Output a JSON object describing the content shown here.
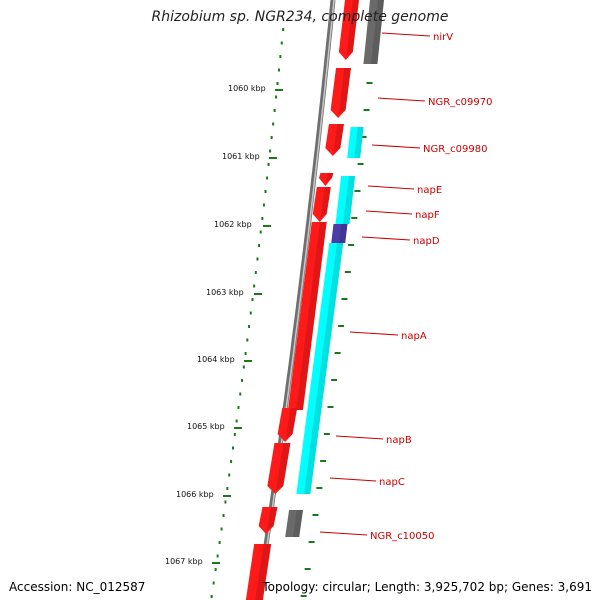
{
  "title": "Rhizobium sp. NGR234, complete genome",
  "footer": {
    "accession": "Accession: NC_012587",
    "summary": "Topology: circular; Length: 3,925,702 bp; Genes: 3,691"
  },
  "colors": {
    "backbone": "#6f6f6f",
    "forward_cds": "#ff1a1a",
    "reverse_cds": "#00ffff",
    "hypothetical": "#6a6a6a",
    "highlight": "#4b3ca8",
    "tick": "#1a7a1a",
    "label": "#cc0000"
  },
  "ruler": {
    "labels": [
      "1060 kbp",
      "1061 kbp",
      "1062 kbp",
      "1063 kbp",
      "1064 kbp",
      "1065 kbp",
      "1066 kbp",
      "1067 kbp"
    ]
  },
  "genes": [
    {
      "name": "nirV",
      "strand": "reverse",
      "type": "hypothetical"
    },
    {
      "name": "NGR_c09970",
      "strand": "forward",
      "type": "cds"
    },
    {
      "name": "NGR_c09980",
      "strand": "reverse",
      "type": "cds"
    },
    {
      "name": "napE",
      "strand": "forward",
      "type": "cds"
    },
    {
      "name": "napF",
      "strand": "forward",
      "type": "cds"
    },
    {
      "name": "napD",
      "strand": "reverse",
      "type": "highlight"
    },
    {
      "name": "napA",
      "strand": "reverse",
      "type": "cds"
    },
    {
      "name": "napB",
      "strand": "forward",
      "type": "cds"
    },
    {
      "name": "napC",
      "strand": "forward",
      "type": "cds"
    },
    {
      "name": "NGR_c10050",
      "strand": "reverse",
      "type": "hypothetical"
    }
  ]
}
